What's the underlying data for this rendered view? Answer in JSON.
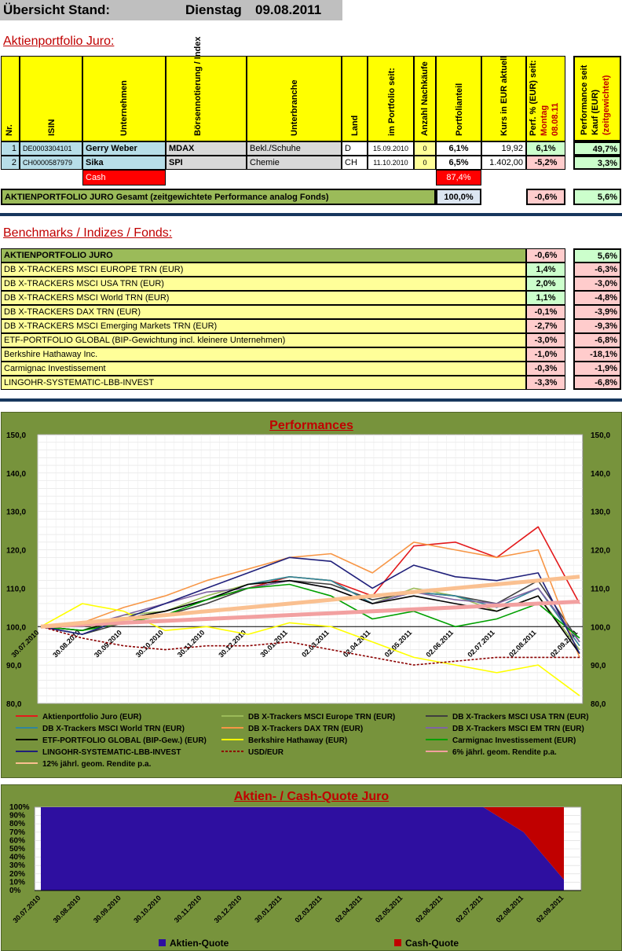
{
  "header": {
    "label": "Übersicht Stand:",
    "day": "Dienstag",
    "date": "09.08.2011"
  },
  "portfolio": {
    "title": "Aktienportfolio Juro:",
    "columns": {
      "nr": "Nr.",
      "isin": "ISIN",
      "company": "Unternehmen",
      "index": "Börsennotierung / Index",
      "sector": "Unterbranche",
      "country": "Land",
      "since": "im Portfolio seit:",
      "buys": "Anzahl Nachkäufe",
      "share": "Portfolianteil",
      "price": "Kurs in EUR aktuell",
      "perf_a": "Perf. % (EUR) seit:",
      "perf_b": "Montag",
      "perf_c": "08.08.11",
      "perfbuy_a": "Performance seit",
      "perfbuy_b": "Kauf (EUR)",
      "perfbuy_c": "(zeitgewichtet)"
    },
    "rows": [
      {
        "nr": "1",
        "isin": "DE0003304101",
        "company": "Gerry Weber",
        "index": "MDAX",
        "sector": "Bekl./Schuhe",
        "country": "D",
        "since": "15.09.2010",
        "buys": "0",
        "share": "6,1%",
        "price": "19,92",
        "perf": "6,1%",
        "perfbuy": "49,7%"
      },
      {
        "nr": "2",
        "isin": "CH0000587979",
        "company": "Sika",
        "index": "SPI",
        "sector": "Chemie",
        "country": "CH",
        "since": "11.10.2010",
        "buys": "0",
        "share": "6,5%",
        "price": "1.402,00",
        "perf": "-5,2%",
        "perfbuy": "3,3%"
      }
    ],
    "cash": {
      "label": "Cash",
      "share": "87,4%"
    },
    "total": {
      "label": "AKTIENPORTFOLIO JURO Gesamt (zeitgewichtete Performance analog Fonds)",
      "share": "100,0%",
      "perf": "-0,6%",
      "perfbuy": "5,6%"
    }
  },
  "benchmarks": {
    "title": "Benchmarks / Indizes / Fonds:",
    "rows": [
      {
        "name": "AKTIENPORTFOLIO JURO",
        "perf": "-0,6%",
        "perfbuy": "5,6%",
        "highlight": true
      },
      {
        "name": "DB X-TRACKERS MSCI EUROPE TRN (EUR)",
        "perf": "1,4%",
        "perfbuy": "-6,3%"
      },
      {
        "name": "DB X-TRACKERS MSCI USA TRN (EUR)",
        "perf": "2,0%",
        "perfbuy": "-3,0%"
      },
      {
        "name": "DB X-TRACKERS MSCI World TRN (EUR)",
        "perf": "1,1%",
        "perfbuy": "-4,8%"
      },
      {
        "name": "DB X-TRACKERS DAX TRN (EUR)",
        "perf": "-0,1%",
        "perfbuy": "-3,9%"
      },
      {
        "name": "DB X-TRACKERS MSCI Emerging Markets TRN (EUR)",
        "perf": "-2,7%",
        "perfbuy": "-9,3%"
      },
      {
        "name": "ETF-PORTFOLIO GLOBAL (BIP-Gewichtung incl. kleinere Unternehmen)",
        "perf": "-3,0%",
        "perfbuy": "-6,8%"
      },
      {
        "name": "Berkshire Hathaway Inc.",
        "perf": "-1,0%",
        "perfbuy": "-18,1%"
      },
      {
        "name": "Carmignac Investissement",
        "perf": "-0,3%",
        "perfbuy": "-1,9%"
      },
      {
        "name": "LINGOHR-SYSTEMATIC-LBB-INVEST",
        "perf": "-3,3%",
        "perfbuy": "-6,8%"
      }
    ]
  },
  "chart_data": [
    {
      "type": "line",
      "title": "Performances",
      "ylim": [
        80,
        150
      ],
      "yticks": [
        "150,0",
        "140,0",
        "130,0",
        "120,0",
        "110,0",
        "100,0",
        "90,0",
        "80,0"
      ],
      "x": [
        "30.07.2010",
        "30.08.2010",
        "30.09.2010",
        "30.10.2010",
        "30.11.2010",
        "30.12.2010",
        "30.01.2011",
        "02.03.2011",
        "02.04.2011",
        "02.05.2011",
        "02.06.2011",
        "02.07.2011",
        "02.08.2011",
        "02.09.2011"
      ],
      "grid": true,
      "legend_position": "bottom",
      "series": [
        {
          "name": "Aktienportfolio Juro (EUR)",
          "color": "#e31a1c",
          "dash": "",
          "values": [
            100,
            101,
            102,
            104,
            107,
            110,
            113,
            112,
            108,
            121,
            122,
            118,
            126,
            106
          ]
        },
        {
          "name": "DB X-Trackers MSCI Europe TRN (EUR)",
          "color": "#9bbb59",
          "dash": "",
          "values": [
            100,
            99,
            103,
            104,
            108,
            111,
            113,
            112,
            106,
            110,
            108,
            104,
            108,
            94
          ]
        },
        {
          "name": "DB X-Trackers MSCI USA TRN (EUR)",
          "color": "#3f3f3f",
          "dash": "",
          "values": [
            100,
            98,
            101,
            103,
            106,
            110,
            112,
            111,
            107,
            109,
            108,
            106,
            112,
            96
          ]
        },
        {
          "name": "DB X-Trackers MSCI World TRN (EUR)",
          "color": "#31859c",
          "dash": "",
          "values": [
            100,
            98,
            102,
            104,
            107,
            111,
            113,
            112,
            106,
            109,
            108,
            105,
            110,
            95
          ]
        },
        {
          "name": "DB X-Trackers DAX TRN (EUR)",
          "color": "#f79646",
          "dash": "",
          "values": [
            100,
            101,
            105,
            108,
            112,
            115,
            118,
            119,
            114,
            122,
            120,
            118,
            120,
            92
          ]
        },
        {
          "name": "DB X-Trackers  MSCI EM TRN (EUR)",
          "color": "#8064a2",
          "dash": "",
          "values": [
            100,
            100,
            103,
            106,
            109,
            110,
            112,
            110,
            106,
            109,
            107,
            106,
            110,
            96
          ]
        },
        {
          "name": "ETF-PORTFOLIO GLOBAL (BIP-Gew.) (EUR)",
          "color": "#000000",
          "dash": "",
          "values": [
            100,
            99,
            102,
            104,
            107,
            111,
            112,
            110,
            106,
            108,
            106,
            104,
            108,
            93
          ]
        },
        {
          "name": "Berkshire Hathaway (EUR)",
          "color": "#ffff00",
          "dash": "",
          "values": [
            100,
            106,
            104,
            99,
            100,
            98,
            101,
            100,
            96,
            92,
            90,
            88,
            90,
            82
          ]
        },
        {
          "name": "Carmignac Investissement (EUR)",
          "color": "#00a000",
          "dash": "",
          "values": [
            100,
            99,
            101,
            103,
            107,
            110,
            111,
            108,
            102,
            104,
            100,
            102,
            106,
            97
          ]
        },
        {
          "name": "LINGOHR-SYSTEMATIC-LBB-INVEST",
          "color": "#1f1f7a",
          "dash": "",
          "values": [
            100,
            98,
            102,
            106,
            110,
            114,
            118,
            117,
            110,
            116,
            113,
            112,
            114,
            93
          ]
        },
        {
          "name": "USD/EUR",
          "color": "#8b0000",
          "dash": "3,2",
          "values": [
            100,
            97,
            95,
            94,
            95,
            95,
            96,
            94,
            92,
            90,
            91,
            92,
            92,
            92
          ]
        },
        {
          "name": "6% jährl. geom. Rendite p.a.",
          "color": "#f2a0a0",
          "dash": "",
          "values": [
            100,
            100.5,
            101,
            101.5,
            102,
            102.5,
            103,
            103.5,
            104,
            104.5,
            105,
            105.5,
            106,
            106.5
          ]
        },
        {
          "name": "12% jährl. geom. Rendite p.a.",
          "color": "#fac090",
          "dash": "",
          "values": [
            100,
            101,
            102,
            103,
            104,
            105,
            106,
            107,
            108,
            109,
            110,
            111,
            112,
            113
          ]
        }
      ]
    },
    {
      "type": "area",
      "title": "Aktien- / Cash-Quote Juro",
      "ylim": [
        0,
        100
      ],
      "yticks": [
        "100%",
        "90%",
        "80%",
        "70%",
        "60%",
        "50%",
        "40%",
        "30%",
        "20%",
        "10%",
        "0%"
      ],
      "x": [
        "30.07.2010",
        "30.08.2010",
        "30.09.2010",
        "30.10.2010",
        "30.11.2010",
        "30.12.2010",
        "30.01.2011",
        "02.03.2011",
        "02.04.2011",
        "02.05.2011",
        "02.06.2011",
        "02.07.2011",
        "02.08.2011",
        "02.09.2011"
      ],
      "legend_position": "bottom",
      "series": [
        {
          "name": "Aktien-Quote",
          "color": "#2e0fa0",
          "values": [
            100,
            100,
            100,
            100,
            100,
            100,
            100,
            100,
            100,
            100,
            100,
            100,
            70,
            13
          ]
        },
        {
          "name": "Cash-Quote",
          "color": "#c00000",
          "values": [
            0,
            0,
            0,
            0,
            0,
            0,
            0,
            0,
            0,
            0,
            0,
            0,
            30,
            87
          ]
        }
      ]
    }
  ]
}
